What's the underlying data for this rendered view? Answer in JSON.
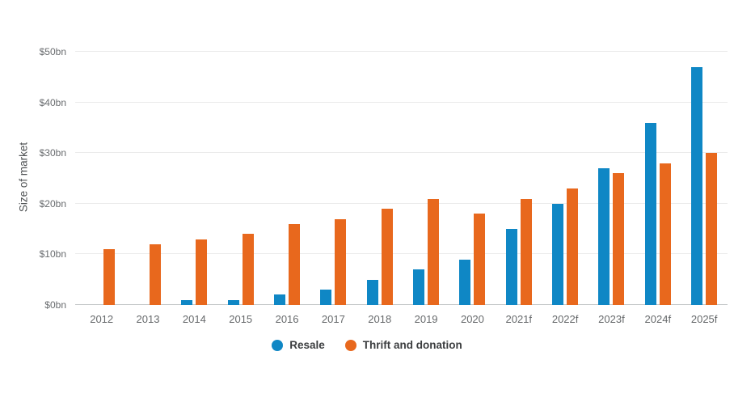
{
  "chart_data": {
    "type": "bar",
    "ylabel": "Size of market",
    "ylim": [
      0,
      50
    ],
    "grid": true,
    "legend_position": "bottom",
    "yticks": [
      {
        "value": 0,
        "label": "$0bn"
      },
      {
        "value": 10,
        "label": "$10bn"
      },
      {
        "value": 20,
        "label": "$20bn"
      },
      {
        "value": 30,
        "label": "$30bn"
      },
      {
        "value": 40,
        "label": "$40bn"
      },
      {
        "value": 50,
        "label": "$50bn"
      }
    ],
    "categories": [
      "2012",
      "2013",
      "2014",
      "2015",
      "2016",
      "2017",
      "2018",
      "2019",
      "2020",
      "2021f",
      "2022f",
      "2023f",
      "2024f",
      "2025f"
    ],
    "series": [
      {
        "name": "Resale",
        "color": "#0f87c5",
        "values": [
          0,
          0,
          1,
          1,
          2,
          3,
          5,
          7,
          9,
          15,
          20,
          27,
          36,
          47
        ]
      },
      {
        "name": "Thrift and donation",
        "color": "#e8681d",
        "values": [
          11,
          12,
          13,
          14,
          16,
          17,
          19,
          21,
          18,
          21,
          23,
          26,
          28,
          30
        ]
      }
    ]
  }
}
